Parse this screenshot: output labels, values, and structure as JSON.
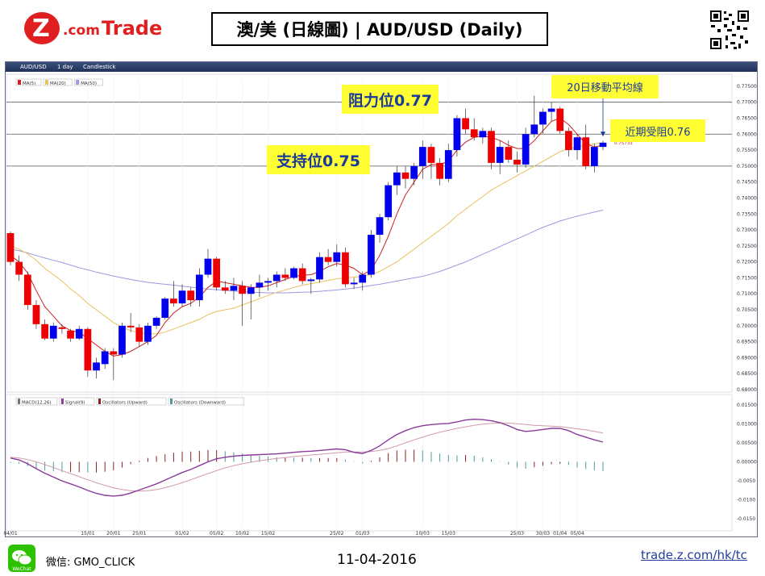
{
  "header": {
    "brand_name": "Z.com Trade",
    "title": "澳/美 (日線圖) | AUD/USD  (Daily)"
  },
  "toolbar": {
    "instrument": "AUD/USD",
    "timeframe": "1 day",
    "chart_style": "Candlestick"
  },
  "annotations": {
    "resistance": "阻力位0.77",
    "support": "支持位0.75",
    "ma20": "20日移動平均線",
    "recent": "近期受阻0.76",
    "last_price": "0.75733"
  },
  "footer": {
    "wechat_label": "WeChat",
    "wechat_id": "微信: GMO_CLICK",
    "date": "11-04-2016",
    "link": "trade.z.com/hk/tc"
  },
  "colors": {
    "up": "#0000ee",
    "down": "#ee0000",
    "ma5": "#cc2222",
    "ma20": "#e8c060",
    "ma50": "#9a9ae0",
    "macd": "#8a3a9a",
    "signal": "#d09aaa",
    "callout": "#ffff33",
    "callout_text": "#1a3a9a"
  },
  "chart_data": [
    {
      "type": "candlestick",
      "instrument": "AUD/USD",
      "legend": [
        "MA(5)",
        "MA(20)",
        "MA(50)"
      ],
      "ylim": [
        0.68,
        0.7775
      ],
      "y_ticks": [
        "0.77500",
        "0.77000",
        "0.76500",
        "0.76000",
        "0.75500",
        "0.75000",
        "0.74500",
        "0.74000",
        "0.73500",
        "0.73000",
        "0.72500",
        "0.72000",
        "0.71500",
        "0.71000",
        "0.70500",
        "0.70000",
        "0.69500",
        "0.69000",
        "0.68500",
        "0.68000"
      ],
      "x_tick_labels": [
        {
          "label": "04/01",
          "i": 0
        },
        {
          "label": "15/01",
          "i": 9
        },
        {
          "label": "20/01",
          "i": 12
        },
        {
          "label": "25/01",
          "i": 15
        },
        {
          "label": "01/02",
          "i": 20
        },
        {
          "label": "05/02",
          "i": 24
        },
        {
          "label": "10/02",
          "i": 27
        },
        {
          "label": "15/02",
          "i": 30
        },
        {
          "label": "25/02",
          "i": 38
        },
        {
          "label": "01/03",
          "i": 41
        },
        {
          "label": "10/03",
          "i": 48
        },
        {
          "label": "15/03",
          "i": 51
        },
        {
          "label": "25/03",
          "i": 59
        },
        {
          "label": "30/03",
          "i": 62
        },
        {
          "label": "01/04",
          "i": 64
        },
        {
          "label": "05/04",
          "i": 66
        }
      ],
      "horizontal_levels": [
        0.77,
        0.76,
        0.75
      ],
      "candles": [
        [
          0.729,
          0.7295,
          0.719,
          0.72
        ],
        [
          0.72,
          0.722,
          0.714,
          0.716
        ],
        [
          0.716,
          0.717,
          0.705,
          0.7065
        ],
        [
          0.7065,
          0.708,
          0.699,
          0.7005
        ],
        [
          0.7005,
          0.702,
          0.6955,
          0.696
        ],
        [
          0.696,
          0.701,
          0.695,
          0.7
        ],
        [
          0.6995,
          0.7005,
          0.6975,
          0.699
        ],
        [
          0.6985,
          0.699,
          0.695,
          0.696
        ],
        [
          0.696,
          0.7,
          0.6955,
          0.699
        ],
        [
          0.699,
          0.6995,
          0.684,
          0.686
        ],
        [
          0.686,
          0.69,
          0.6835,
          0.6885
        ],
        [
          0.688,
          0.693,
          0.6865,
          0.692
        ],
        [
          0.692,
          0.693,
          0.683,
          0.691
        ],
        [
          0.691,
          0.701,
          0.69,
          0.7
        ],
        [
          0.7,
          0.704,
          0.698,
          0.6995
        ],
        [
          0.6995,
          0.7005,
          0.6935,
          0.695
        ],
        [
          0.695,
          0.701,
          0.694,
          0.7
        ],
        [
          0.7,
          0.703,
          0.699,
          0.7025
        ],
        [
          0.7025,
          0.709,
          0.702,
          0.7085
        ],
        [
          0.7085,
          0.714,
          0.706,
          0.707
        ],
        [
          0.707,
          0.713,
          0.706,
          0.711
        ],
        [
          0.711,
          0.712,
          0.706,
          0.708
        ],
        [
          0.708,
          0.718,
          0.706,
          0.716
        ],
        [
          0.716,
          0.724,
          0.715,
          0.721
        ],
        [
          0.721,
          0.7215,
          0.711,
          0.712
        ],
        [
          0.712,
          0.714,
          0.71,
          0.711
        ],
        [
          0.711,
          0.715,
          0.708,
          0.7125
        ],
        [
          0.7125,
          0.714,
          0.7,
          0.71
        ],
        [
          0.71,
          0.713,
          0.702,
          0.712
        ],
        [
          0.712,
          0.716,
          0.709,
          0.7135
        ],
        [
          0.7135,
          0.715,
          0.711,
          0.714
        ],
        [
          0.714,
          0.717,
          0.712,
          0.716
        ],
        [
          0.716,
          0.718,
          0.714,
          0.715
        ],
        [
          0.715,
          0.7185,
          0.7145,
          0.718
        ],
        [
          0.718,
          0.7195,
          0.713,
          0.714
        ],
        [
          0.714,
          0.715,
          0.71,
          0.7145
        ],
        [
          0.7145,
          0.723,
          0.7135,
          0.7215
        ],
        [
          0.7215,
          0.724,
          0.719,
          0.72
        ],
        [
          0.72,
          0.7255,
          0.7185,
          0.723
        ],
        [
          0.723,
          0.7245,
          0.712,
          0.713
        ],
        [
          0.713,
          0.715,
          0.7115,
          0.7135
        ],
        [
          0.7135,
          0.717,
          0.711,
          0.716
        ],
        [
          0.716,
          0.73,
          0.715,
          0.7285
        ],
        [
          0.7285,
          0.735,
          0.726,
          0.734
        ],
        [
          0.734,
          0.745,
          0.733,
          0.744
        ],
        [
          0.744,
          0.75,
          0.741,
          0.748
        ],
        [
          0.748,
          0.75,
          0.743,
          0.746
        ],
        [
          0.746,
          0.751,
          0.744,
          0.75
        ],
        [
          0.75,
          0.758,
          0.746,
          0.756
        ],
        [
          0.756,
          0.757,
          0.746,
          0.751
        ],
        [
          0.751,
          0.7525,
          0.744,
          0.746
        ],
        [
          0.746,
          0.757,
          0.745,
          0.755
        ],
        [
          0.755,
          0.766,
          0.753,
          0.765
        ],
        [
          0.765,
          0.768,
          0.76,
          0.7615
        ],
        [
          0.7615,
          0.765,
          0.758,
          0.759
        ],
        [
          0.759,
          0.762,
          0.757,
          0.761
        ],
        [
          0.761,
          0.762,
          0.749,
          0.751
        ],
        [
          0.751,
          0.758,
          0.7475,
          0.756
        ],
        [
          0.756,
          0.758,
          0.751,
          0.752
        ],
        [
          0.752,
          0.7545,
          0.748,
          0.7505
        ],
        [
          0.7505,
          0.762,
          0.7495,
          0.76
        ],
        [
          0.76,
          0.772,
          0.759,
          0.763
        ],
        [
          0.763,
          0.768,
          0.76,
          0.767
        ],
        [
          0.767,
          0.77,
          0.764,
          0.768
        ],
        [
          0.768,
          0.7685,
          0.76,
          0.761
        ],
        [
          0.761,
          0.762,
          0.753,
          0.755
        ],
        [
          0.755,
          0.76,
          0.752,
          0.759
        ],
        [
          0.759,
          0.763,
          0.749,
          0.75
        ],
        [
          0.75,
          0.757,
          0.748,
          0.756
        ],
        [
          0.756,
          0.758,
          0.755,
          0.75733
        ]
      ],
      "ma5": [
        0.722,
        0.72,
        0.7165,
        0.711,
        0.706,
        0.703,
        0.7,
        0.6985,
        0.698,
        0.696,
        0.694,
        0.692,
        0.6905,
        0.691,
        0.692,
        0.6935,
        0.695,
        0.697,
        0.701,
        0.704,
        0.706,
        0.707,
        0.709,
        0.712,
        0.714,
        0.7135,
        0.713,
        0.7125,
        0.712,
        0.712,
        0.7125,
        0.7135,
        0.7145,
        0.7155,
        0.7158,
        0.716,
        0.717,
        0.7185,
        0.7195,
        0.719,
        0.718,
        0.716,
        0.7175,
        0.722,
        0.728,
        0.735,
        0.741,
        0.745,
        0.749,
        0.7505,
        0.7505,
        0.7515,
        0.755,
        0.7575,
        0.759,
        0.7595,
        0.759,
        0.758,
        0.7565,
        0.7555,
        0.7555,
        0.758,
        0.761,
        0.764,
        0.765,
        0.763,
        0.76,
        0.757,
        0.756,
        0.7565
      ],
      "ma20": [
        0.725,
        0.724,
        0.7225,
        0.7205,
        0.718,
        0.716,
        0.714,
        0.7115,
        0.7095,
        0.707,
        0.705,
        0.703,
        0.701,
        0.6995,
        0.6985,
        0.6978,
        0.6975,
        0.6975,
        0.698,
        0.699,
        0.7,
        0.701,
        0.702,
        0.7035,
        0.7045,
        0.705,
        0.7055,
        0.7065,
        0.7075,
        0.7085,
        0.7095,
        0.7105,
        0.7112,
        0.712,
        0.7127,
        0.7132,
        0.7137,
        0.7142,
        0.7147,
        0.715,
        0.7152,
        0.7155,
        0.716,
        0.717,
        0.7185,
        0.72,
        0.722,
        0.724,
        0.726,
        0.728,
        0.73,
        0.732,
        0.7345,
        0.7365,
        0.7385,
        0.7405,
        0.7425,
        0.744,
        0.7455,
        0.747,
        0.7485,
        0.75,
        0.7515,
        0.753,
        0.7545,
        0.7555,
        0.756,
        0.7565,
        0.757,
        0.7573
      ],
      "ma50": [
        0.724,
        0.7235,
        0.7228,
        0.722,
        0.7212,
        0.7205,
        0.7198,
        0.719,
        0.7182,
        0.7175,
        0.7168,
        0.7162,
        0.7156,
        0.715,
        0.7145,
        0.714,
        0.7136,
        0.7133,
        0.713,
        0.7127,
        0.7124,
        0.7121,
        0.7118,
        0.7115,
        0.7113,
        0.7111,
        0.7109,
        0.7107,
        0.7105,
        0.7104,
        0.7103,
        0.7103,
        0.7103,
        0.7104,
        0.7105,
        0.7106,
        0.7108,
        0.711,
        0.7112,
        0.7115,
        0.7118,
        0.7122,
        0.7126,
        0.713,
        0.7135,
        0.714,
        0.7145,
        0.715,
        0.7155,
        0.7162,
        0.717,
        0.718,
        0.719,
        0.72,
        0.7212,
        0.7224,
        0.7236,
        0.7248,
        0.726,
        0.7272,
        0.7284,
        0.7296,
        0.7308,
        0.7318,
        0.7328,
        0.7336,
        0.7343,
        0.735,
        0.7356,
        0.7362
      ]
    },
    {
      "type": "histogram+line",
      "legend": [
        "MACD(12,26)",
        "Signal(9)",
        "Oscillators (Upward)",
        "Oscillators (Downward)"
      ],
      "ylim": [
        -0.0175,
        0.0175
      ],
      "y_ticks": [
        "0.01500",
        "0.01000",
        "0.00500",
        "0.00000",
        "-0.0050",
        "-0.0100",
        "-0.0150"
      ],
      "macd": [
        0.001,
        0.0005,
        -0.0005,
        -0.0018,
        -0.003,
        -0.004,
        -0.005,
        -0.0058,
        -0.0066,
        -0.0075,
        -0.0083,
        -0.0088,
        -0.009,
        -0.0088,
        -0.0082,
        -0.0074,
        -0.0066,
        -0.0058,
        -0.0048,
        -0.0038,
        -0.0028,
        -0.002,
        -0.001,
        0.0,
        0.0008,
        0.0012,
        0.0015,
        0.0017,
        0.0018,
        0.0019,
        0.002,
        0.0021,
        0.0023,
        0.0025,
        0.0027,
        0.0028,
        0.003,
        0.0032,
        0.0034,
        0.0032,
        0.0025,
        0.0022,
        0.003,
        0.0042,
        0.0058,
        0.0072,
        0.0082,
        0.009,
        0.0095,
        0.0098,
        0.01,
        0.0101,
        0.0105,
        0.011,
        0.0112,
        0.0111,
        0.0108,
        0.0103,
        0.0095,
        0.0085,
        0.008,
        0.0082,
        0.0085,
        0.0088,
        0.0088,
        0.0082,
        0.0072,
        0.0065,
        0.0058,
        0.0052
      ],
      "signal": [
        0.0012,
        0.001,
        0.0006,
        0.0,
        -0.0007,
        -0.0015,
        -0.0023,
        -0.0031,
        -0.0039,
        -0.0047,
        -0.0055,
        -0.0062,
        -0.0068,
        -0.0073,
        -0.0076,
        -0.0077,
        -0.0076,
        -0.0073,
        -0.0068,
        -0.0062,
        -0.0055,
        -0.0047,
        -0.0039,
        -0.0031,
        -0.0023,
        -0.0016,
        -0.001,
        -0.0005,
        -0.0001,
        0.0003,
        0.0006,
        0.0009,
        0.0011,
        0.0014,
        0.0016,
        0.0018,
        0.002,
        0.0022,
        0.0024,
        0.0026,
        0.0026,
        0.0026,
        0.0027,
        0.003,
        0.0035,
        0.0042,
        0.005,
        0.0058,
        0.0065,
        0.0072,
        0.0078,
        0.0083,
        0.0088,
        0.0092,
        0.0096,
        0.0099,
        0.0101,
        0.0102,
        0.0102,
        0.01,
        0.0098,
        0.0096,
        0.0095,
        0.0094,
        0.0093,
        0.009,
        0.0087,
        0.0084,
        0.008,
        0.0076
      ],
      "histogram": [
        -0.0002,
        -0.0005,
        -0.0011,
        -0.0018,
        -0.0023,
        -0.0025,
        -0.0027,
        -0.0027,
        -0.0027,
        -0.0028,
        -0.0028,
        -0.0026,
        -0.0022,
        -0.0015,
        -0.0006,
        0.0003,
        0.001,
        0.0015,
        0.002,
        0.0024,
        0.0027,
        0.0027,
        0.0029,
        0.0031,
        0.0031,
        0.0028,
        0.0025,
        0.0022,
        0.0019,
        0.0016,
        0.0014,
        0.0012,
        0.0012,
        0.0011,
        0.0011,
        0.001,
        0.001,
        0.001,
        0.001,
        0.0006,
        -0.0001,
        -0.0004,
        0.0003,
        0.0012,
        0.0023,
        0.003,
        0.0032,
        0.0032,
        0.003,
        0.0026,
        0.0022,
        0.0018,
        0.0017,
        0.0018,
        0.0016,
        0.0012,
        0.0007,
        0.0001,
        -0.0007,
        -0.0015,
        -0.0018,
        -0.0014,
        -0.001,
        -0.0006,
        -0.0005,
        -0.0008,
        -0.0015,
        -0.0019,
        -0.0022,
        -0.0024
      ]
    }
  ]
}
